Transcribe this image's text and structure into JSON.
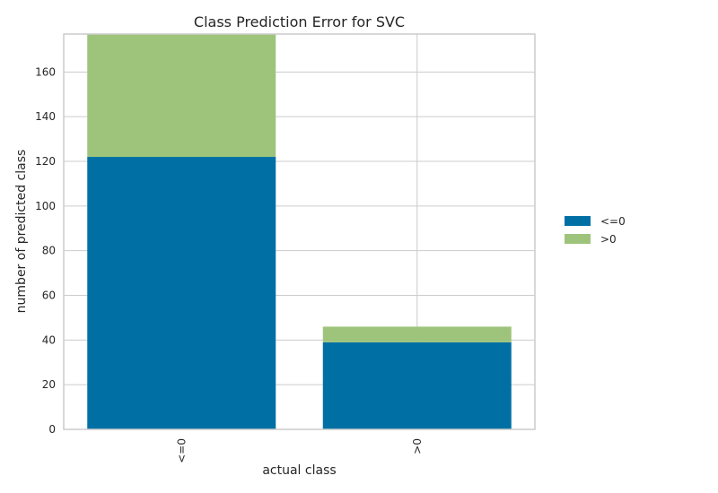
{
  "chart_data": {
    "type": "bar",
    "stacked": true,
    "title": "Class Prediction Error for SVC",
    "xlabel": "actual class",
    "ylabel": "number of predicted class",
    "categories": [
      "<=0",
      ">0"
    ],
    "series": [
      {
        "name": "<=0",
        "color": "#0070a4",
        "values": [
          122,
          39
        ]
      },
      {
        "name": ">0",
        "color": "#9ec47b",
        "values": [
          55,
          7
        ]
      }
    ],
    "ylim": [
      0,
      177
    ],
    "yticks": [
      0,
      20,
      40,
      60,
      80,
      100,
      120,
      140,
      160
    ],
    "grid": true,
    "legend": "right"
  }
}
